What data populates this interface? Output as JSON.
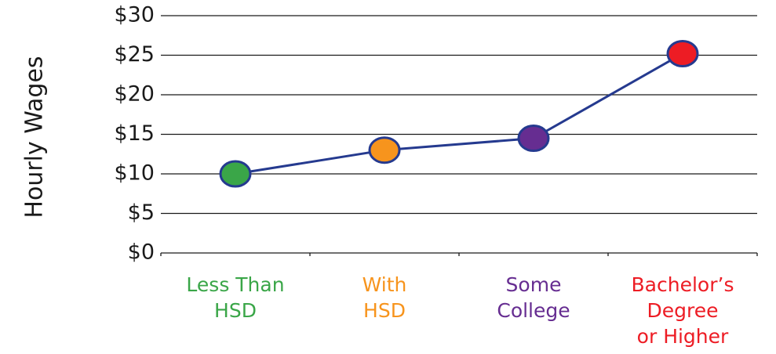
{
  "chart_data": {
    "type": "line",
    "title": "",
    "xlabel": "",
    "ylabel": "Hourly Wages",
    "ylim": [
      0,
      30
    ],
    "yticks": [
      {
        "value": 0,
        "label": "$0"
      },
      {
        "value": 5,
        "label": "$5"
      },
      {
        "value": 10,
        "label": "$10"
      },
      {
        "value": 15,
        "label": "$15"
      },
      {
        "value": 20,
        "label": "$20"
      },
      {
        "value": 25,
        "label": "$25"
      },
      {
        "value": 30,
        "label": "$30"
      }
    ],
    "grid": true,
    "legend": "none",
    "line_color": "#253a8f",
    "categories": [
      {
        "lines": [
          "Less Than",
          "HSD"
        ],
        "color": "#3aa648",
        "marker_color": "#3aa648"
      },
      {
        "lines": [
          "With",
          "HSD"
        ],
        "color": "#f7941d",
        "marker_color": "#f7941d"
      },
      {
        "lines": [
          "Some",
          "College"
        ],
        "color": "#662d91",
        "marker_color": "#662d91"
      },
      {
        "lines": [
          "Bachelor’s",
          "Degree",
          "or Higher"
        ],
        "color": "#ed1c24",
        "marker_color": "#ed1c24"
      }
    ],
    "series": [
      {
        "values": [
          10,
          13,
          14.5,
          25.2
        ]
      }
    ]
  }
}
